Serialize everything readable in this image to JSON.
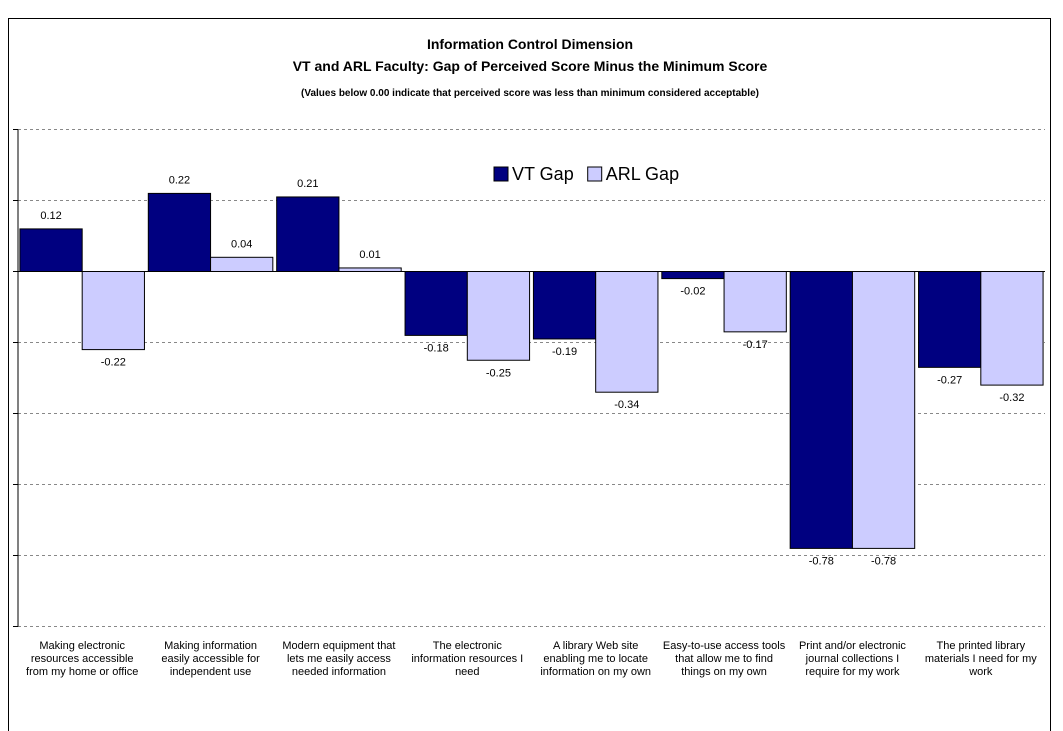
{
  "chart_data": {
    "type": "bar",
    "title": "Information Control Dimension",
    "subtitle": "VT and ARL Faculty: Gap of Perceived Score Minus the Minimum Score",
    "annotation": "(Values below 0.00 indicate that perceived score was less than minimum considered acceptable)",
    "categories": [
      "Making electronic resources accessible from my home or office",
      "Making information easily accessible for independent use",
      "Modern equipment that lets me easily access needed information",
      "The electronic information resources I need",
      "A library Web site enabling me to locate information on my own",
      "Easy-to-use access tools that allow me to find things on my own",
      "Print and/or electronic journal collections I require for my work",
      "The printed library materials I need for my work"
    ],
    "series": [
      {
        "name": "VT Gap",
        "color": "#000080",
        "values": [
          0.12,
          0.22,
          0.21,
          -0.18,
          -0.19,
          -0.02,
          -0.78,
          -0.27
        ]
      },
      {
        "name": "ARL Gap",
        "color": "#ccccff",
        "values": [
          -0.22,
          0.04,
          0.01,
          -0.25,
          -0.34,
          -0.17,
          -0.78,
          -0.32
        ]
      }
    ],
    "ylim": [
      -1.0,
      0.4
    ],
    "yticks": [
      -1.0,
      -0.8,
      -0.6,
      -0.4,
      -0.2,
      0,
      0.2,
      0.4
    ],
    "grid": true,
    "legend": "top"
  }
}
